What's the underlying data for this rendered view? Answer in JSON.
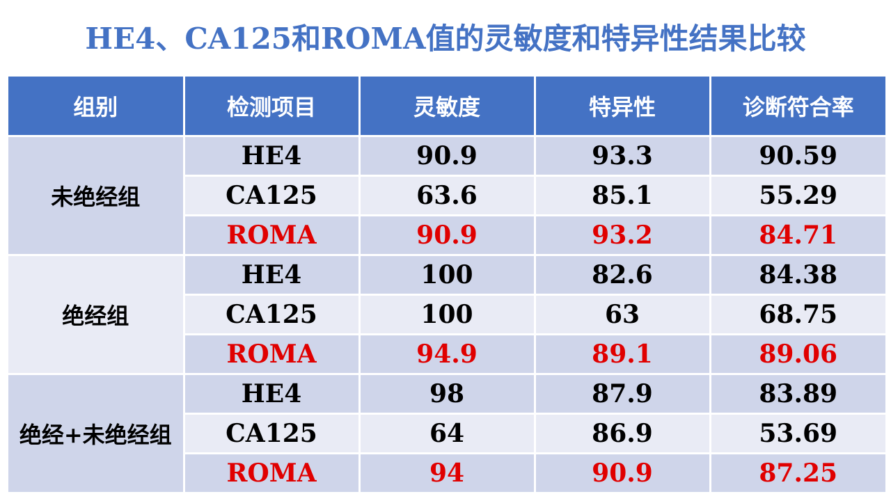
{
  "title": "HE4、CA125和ROMA值的灵敏度和特异性结果比较",
  "colors": {
    "header": "#4472C4",
    "band_dark": "#CFD5EA",
    "band_light": "#E9EBF5",
    "highlight": "#E00000"
  },
  "table": {
    "headers": [
      "组别",
      "检测项目",
      "灵敏度",
      "特异性",
      "诊断符合率"
    ],
    "groups": [
      {
        "name": "未绝经组",
        "rows": [
          {
            "item": "HE4",
            "values": [
              "90.9",
              "93.3",
              "90.59"
            ],
            "highlight": false
          },
          {
            "item": "CA125",
            "values": [
              "63.6",
              "85.1",
              "55.29"
            ],
            "highlight": false
          },
          {
            "item": "ROMA",
            "values": [
              "90.9",
              "93.2",
              "84.71"
            ],
            "highlight": true
          }
        ]
      },
      {
        "name": "绝经组",
        "rows": [
          {
            "item": "HE4",
            "values": [
              "100",
              "82.6",
              "84.38"
            ],
            "highlight": false
          },
          {
            "item": "CA125",
            "values": [
              "100",
              "63",
              "68.75"
            ],
            "highlight": false
          },
          {
            "item": "ROMA",
            "values": [
              "94.9",
              "89.1",
              "89.06"
            ],
            "highlight": true
          }
        ]
      },
      {
        "name": "绝经+未绝经组",
        "rows": [
          {
            "item": "HE4",
            "values": [
              "98",
              "87.9",
              "83.89"
            ],
            "highlight": false
          },
          {
            "item": "CA125",
            "values": [
              "64",
              "86.9",
              "53.69"
            ],
            "highlight": false
          },
          {
            "item": "ROMA",
            "values": [
              "94",
              "90.9",
              "87.25"
            ],
            "highlight": true
          }
        ]
      }
    ]
  }
}
